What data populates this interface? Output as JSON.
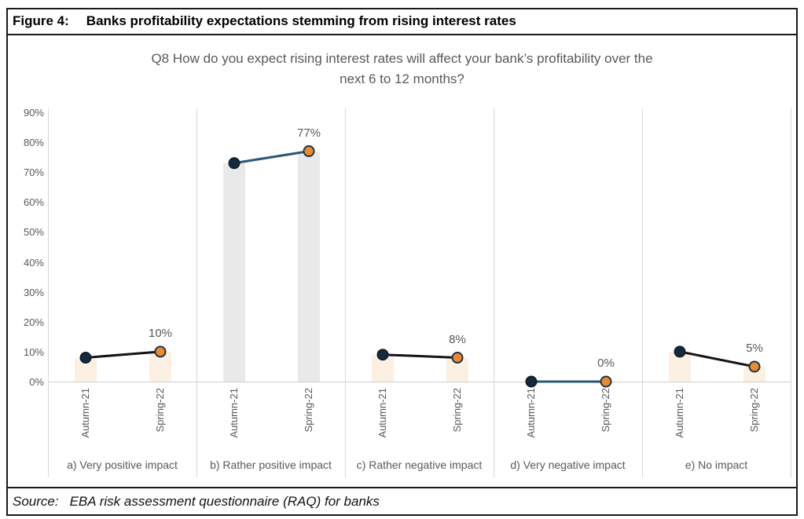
{
  "header": {
    "figure_label": "Figure 4:",
    "title": "Banks profitability expectations stemming from rising interest rates"
  },
  "source": {
    "label": "Source:",
    "text": "EBA risk assessment questionnaire (RAQ) for banks"
  },
  "chart_data": {
    "type": "bar",
    "subtitle_lines": [
      "Q8 How do you expect rising interest rates will affect your bank’s profitability over the",
      "next 6 to 12 months?"
    ],
    "periods": [
      "Autumn-21",
      "Spring-22"
    ],
    "y_ticks": [
      "0%",
      "10%",
      "20%",
      "30%",
      "40%",
      "50%",
      "60%",
      "70%",
      "80%",
      "90%"
    ],
    "ylim": [
      0,
      90
    ],
    "legend": "none",
    "grid": "vertical panel dividers only",
    "panels": [
      {
        "label": "a) Very positive impact",
        "values": [
          8,
          10
        ],
        "data_label": "10%",
        "bar_color": "#fcf0e2",
        "line_color": "#141414"
      },
      {
        "label": "b) Rather positive impact",
        "values": [
          73,
          77
        ],
        "data_label": "77%",
        "bar_color": "#e9e9e9",
        "line_color": "#2b5674"
      },
      {
        "label": "c) Rather negative impact",
        "values": [
          9,
          8
        ],
        "data_label": "8%",
        "bar_color": "#fcf0e2",
        "line_color": "#141414"
      },
      {
        "label": "d) Very negative impact",
        "values": [
          0,
          0
        ],
        "data_label": "0%",
        "bar_color": "#fcf0e2",
        "line_color": "#2b5674"
      },
      {
        "label": "e) No impact",
        "values": [
          10,
          5
        ],
        "data_label": "5%",
        "bar_color": "#fcf0e2",
        "line_color": "#141414"
      }
    ],
    "colors": {
      "autumn_marker_fill": "#152b3d",
      "autumn_marker_border": "#0f1f2c",
      "spring_marker_fill": "#ec8b2d",
      "spring_marker_border": "#1f3346",
      "label_text": "#595959",
      "divider": "#d9d9d9"
    }
  }
}
